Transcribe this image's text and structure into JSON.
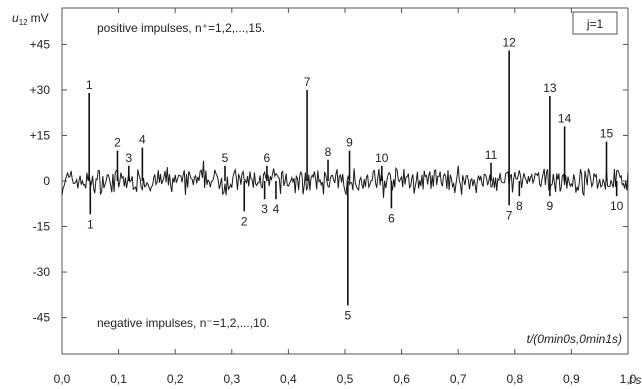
{
  "chart_data": {
    "type": "line",
    "ylabel_main": "u",
    "ylabel_sub": "12",
    "ylabel_unit": "mV",
    "xlabel": "t",
    "xlabel_unit": "s",
    "xlim": [
      0.0,
      1.0
    ],
    "ylim": [
      -57,
      57
    ],
    "x_ticks": [
      "0,0",
      "0,1",
      "0,2",
      "0,3",
      "0,4",
      "0,5",
      "0,6",
      "0,7",
      "0,8",
      "0,9",
      "1,0"
    ],
    "y_ticks": [
      "+45",
      "+30",
      "+15",
      "0",
      "-15",
      "-30",
      "-45"
    ],
    "y_tick_values": [
      45,
      30,
      15,
      0,
      -15,
      -30,
      -45
    ],
    "grid": false,
    "legend_box": "j=1",
    "top_annotation": "positive impulses, n⁺=1,2,...,15.",
    "bottom_annotation": "negative impulses, n⁻=1,2,...,10.",
    "time_window_label": "t/(0min0s,0min1s)",
    "positive_impulses": [
      {
        "n": "1",
        "t": 0.048,
        "value": 29
      },
      {
        "n": "2",
        "t": 0.098,
        "value": 10
      },
      {
        "n": "3",
        "t": 0.118,
        "value": 5
      },
      {
        "n": "4",
        "t": 0.142,
        "value": 11
      },
      {
        "n": "5",
        "t": 0.288,
        "value": 5
      },
      {
        "n": "6",
        "t": 0.362,
        "value": 5
      },
      {
        "n": "7",
        "t": 0.433,
        "value": 30
      },
      {
        "n": "8",
        "t": 0.47,
        "value": 7
      },
      {
        "n": "9",
        "t": 0.508,
        "value": 10
      },
      {
        "n": "10",
        "t": 0.565,
        "value": 5
      },
      {
        "n": "11",
        "t": 0.758,
        "value": 6
      },
      {
        "n": "12",
        "t": 0.79,
        "value": 43
      },
      {
        "n": "13",
        "t": 0.862,
        "value": 28
      },
      {
        "n": "14",
        "t": 0.888,
        "value": 18
      },
      {
        "n": "15",
        "t": 0.962,
        "value": 13
      }
    ],
    "negative_impulses": [
      {
        "n": "1",
        "t": 0.05,
        "value": -11
      },
      {
        "n": "2",
        "t": 0.322,
        "value": -10
      },
      {
        "n": "3",
        "t": 0.358,
        "value": -6
      },
      {
        "n": "4",
        "t": 0.378,
        "value": -6
      },
      {
        "n": "5",
        "t": 0.505,
        "value": -41
      },
      {
        "n": "6",
        "t": 0.582,
        "value": -9
      },
      {
        "n": "7",
        "t": 0.79,
        "value": -8
      },
      {
        "n": "8",
        "t": 0.808,
        "value": -5
      },
      {
        "n": "9",
        "t": 0.862,
        "value": -5
      },
      {
        "n": "10",
        "t": 0.98,
        "value": -5
      }
    ],
    "noise_amplitude": 4
  }
}
